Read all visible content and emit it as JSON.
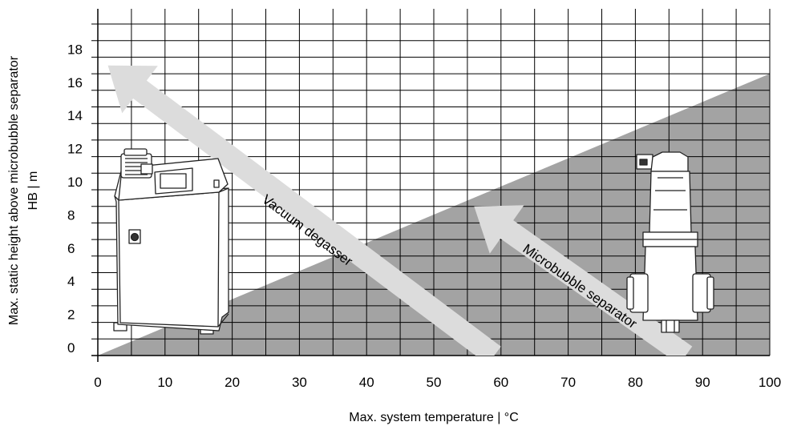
{
  "chart_data": {
    "type": "area",
    "xlabel": "Max. system temperature | °C",
    "ylabel_line1": "Max. static height above microbubble separator",
    "ylabel_line2": "HB | m",
    "xlim": [
      0,
      100
    ],
    "ylim": [
      0,
      20
    ],
    "x_ticks": [
      0,
      10,
      20,
      30,
      40,
      50,
      60,
      70,
      80,
      90,
      100
    ],
    "y_ticks": [
      0,
      2,
      4,
      6,
      8,
      10,
      12,
      14,
      16,
      18
    ],
    "grid": true,
    "regions": [
      {
        "name": "Microbubble separator",
        "boundary": [
          [
            0,
            0
          ],
          [
            100,
            17
          ],
          [
            100,
            0
          ]
        ],
        "color": "#a3a3a3"
      }
    ],
    "arrows": [
      {
        "label": "Vacuum degasser",
        "from": [
          59,
          0
        ],
        "to": [
          1.5,
          17.5
        ]
      },
      {
        "label": "Microbubble separator",
        "from": [
          87.5,
          0
        ],
        "to": [
          56,
          9
        ]
      }
    ],
    "colors": {
      "region": "#a3a3a3",
      "arrow": "#dcdcdc",
      "grid": "#000000"
    },
    "illustrations": [
      "vacuum-degasser-unit",
      "microbubble-separator-device"
    ]
  }
}
